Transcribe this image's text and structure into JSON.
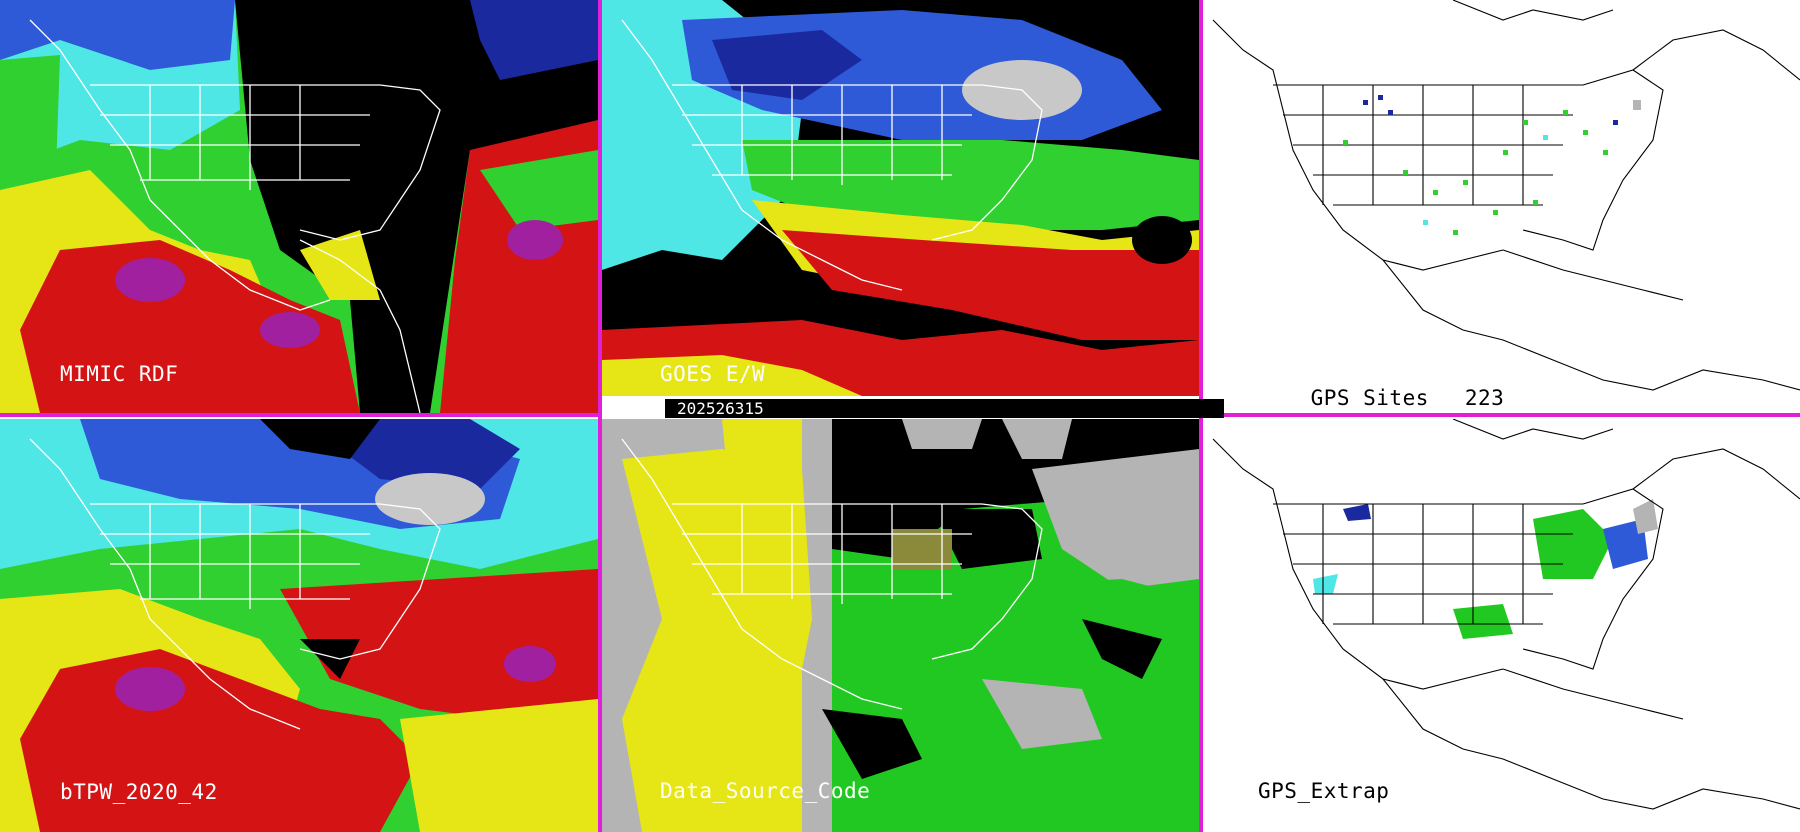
{
  "timestamp": "202526315",
  "panels": {
    "mimic": {
      "label": "MIMIC RDF"
    },
    "goes": {
      "label": "GOES E/W"
    },
    "gps_sites": {
      "label": "GPS Sites",
      "count": "223"
    },
    "btpw": {
      "label": "bTPW_2020_42"
    },
    "data_source": {
      "label": "Data_Source_Code"
    },
    "gps_extrap": {
      "label": "GPS_Extrap"
    }
  },
  "colors": {
    "divider": "#e020d8",
    "tpw_scale": [
      "#1a2a9e",
      "#2e5ad8",
      "#4fe6e6",
      "#2fd02f",
      "#e6e616",
      "#d41414",
      "#a020a0"
    ],
    "source_codes": [
      "#e6e616",
      "#b4b4b4",
      "#22c822",
      "#000000"
    ]
  }
}
